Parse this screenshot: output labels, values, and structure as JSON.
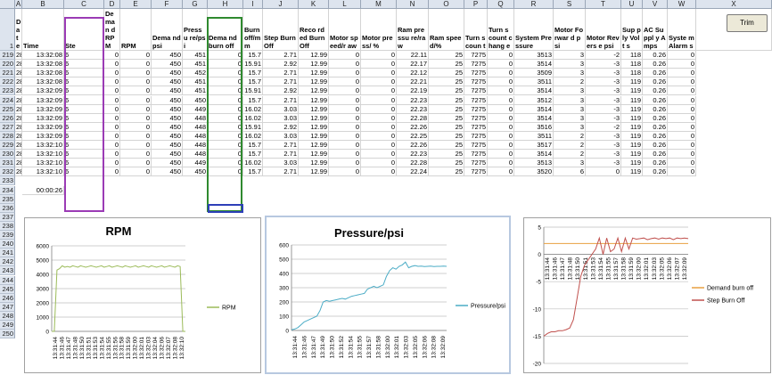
{
  "columns": [
    "A",
    "B",
    "C",
    "D",
    "E",
    "F",
    "G",
    "H",
    "I",
    "J",
    "K",
    "L",
    "M",
    "N",
    "O",
    "P",
    "Q",
    "R",
    "S",
    "T",
    "U",
    "V",
    "W",
    "X"
  ],
  "header_row": {
    "row_number": "1",
    "labels": [
      "Date",
      "Time",
      "Ste",
      "Deman d RPM",
      "RPM",
      "Dema nd psi",
      "Pressu re/psi",
      "Dema nd burn off",
      "Burn off/m m",
      "Step Burn Off",
      "Reco rded Burn Off",
      "Motor speed/r aw",
      "Motor press/ %",
      "Ram pressu re/raw",
      "Ram spee d/%",
      "Turn s coun t",
      "Turn s count chang e",
      "System Pressure",
      "Motor Forwar d psi",
      "Motor Revers e psi",
      "Sup ply Volt s",
      "AC Suppl y Amps",
      "Syste m Alarm s"
    ]
  },
  "rows": [
    {
      "n": "219",
      "c": [
        "28/03/2013",
        "13:32:08",
        "6",
        "0",
        "0",
        "450",
        "451",
        "0",
        "15.7",
        "2.71",
        "12.99",
        "0",
        "0",
        "22.11",
        "25",
        "7275",
        "0",
        "3513",
        "3",
        "-2",
        "118",
        "0.26",
        "0"
      ]
    },
    {
      "n": "220",
      "c": [
        "28/03/2013",
        "13:32:08",
        "6",
        "0",
        "0",
        "450",
        "451",
        "0",
        "15.91",
        "2.92",
        "12.99",
        "0",
        "0",
        "22.17",
        "25",
        "7275",
        "0",
        "3514",
        "3",
        "-3",
        "118",
        "0.26",
        "0"
      ]
    },
    {
      "n": "221",
      "c": [
        "28/03/2013",
        "13:32:08",
        "6",
        "0",
        "0",
        "450",
        "452",
        "0",
        "15.7",
        "2.71",
        "12.99",
        "0",
        "0",
        "22.12",
        "25",
        "7275",
        "0",
        "3509",
        "3",
        "-3",
        "118",
        "0.26",
        "0"
      ]
    },
    {
      "n": "222",
      "c": [
        "28/03/2013",
        "13:32:08",
        "6",
        "0",
        "0",
        "450",
        "451",
        "0",
        "15.7",
        "2.71",
        "12.99",
        "0",
        "0",
        "22.21",
        "25",
        "7275",
        "0",
        "3511",
        "2",
        "-3",
        "119",
        "0.26",
        "0"
      ]
    },
    {
      "n": "223",
      "c": [
        "28/03/2013",
        "13:32:09",
        "6",
        "0",
        "0",
        "450",
        "451",
        "0",
        "15.91",
        "2.92",
        "12.99",
        "0",
        "0",
        "22.19",
        "25",
        "7275",
        "0",
        "3514",
        "3",
        "-3",
        "119",
        "0.26",
        "0"
      ]
    },
    {
      "n": "224",
      "c": [
        "28/03/2013",
        "13:32:09",
        "6",
        "0",
        "0",
        "450",
        "450",
        "0",
        "15.7",
        "2.71",
        "12.99",
        "0",
        "0",
        "22.23",
        "25",
        "7275",
        "0",
        "3512",
        "3",
        "-3",
        "119",
        "0.26",
        "0"
      ]
    },
    {
      "n": "225",
      "c": [
        "28/03/2013",
        "13:32:09",
        "6",
        "0",
        "0",
        "450",
        "449",
        "0",
        "16.02",
        "3.03",
        "12.99",
        "0",
        "0",
        "22.23",
        "25",
        "7275",
        "0",
        "3514",
        "3",
        "-3",
        "119",
        "0.26",
        "0"
      ]
    },
    {
      "n": "226",
      "c": [
        "28/03/2013",
        "13:32:09",
        "6",
        "0",
        "0",
        "450",
        "448",
        "0",
        "16.02",
        "3.03",
        "12.99",
        "0",
        "0",
        "22.28",
        "25",
        "7275",
        "0",
        "3514",
        "3",
        "-3",
        "119",
        "0.26",
        "0"
      ]
    },
    {
      "n": "227",
      "c": [
        "28/03/2013",
        "13:32:09",
        "6",
        "0",
        "0",
        "450",
        "448",
        "0",
        "15.91",
        "2.92",
        "12.99",
        "0",
        "0",
        "22.26",
        "25",
        "7275",
        "0",
        "3516",
        "3",
        "-2",
        "119",
        "0.26",
        "0"
      ]
    },
    {
      "n": "228",
      "c": [
        "28/03/2013",
        "13:32:09",
        "6",
        "0",
        "0",
        "450",
        "448",
        "0",
        "16.02",
        "3.03",
        "12.99",
        "0",
        "0",
        "22.25",
        "25",
        "7275",
        "0",
        "3511",
        "2",
        "-3",
        "119",
        "0.26",
        "0"
      ]
    },
    {
      "n": "229",
      "c": [
        "28/03/2013",
        "13:32:10",
        "6",
        "0",
        "0",
        "450",
        "448",
        "0",
        "15.7",
        "2.71",
        "12.99",
        "0",
        "0",
        "22.26",
        "25",
        "7275",
        "0",
        "3517",
        "2",
        "-3",
        "119",
        "0.26",
        "0"
      ]
    },
    {
      "n": "230",
      "c": [
        "28/03/2013",
        "13:32:10",
        "6",
        "0",
        "0",
        "450",
        "448",
        "0",
        "15.7",
        "2.71",
        "12.99",
        "0",
        "0",
        "22.23",
        "25",
        "7275",
        "0",
        "3514",
        "2",
        "-3",
        "119",
        "0.26",
        "0"
      ]
    },
    {
      "n": "231",
      "c": [
        "28/03/2013",
        "13:32:10",
        "6",
        "0",
        "0",
        "450",
        "449",
        "0",
        "16.02",
        "3.03",
        "12.99",
        "0",
        "0",
        "22.28",
        "25",
        "7275",
        "0",
        "3513",
        "3",
        "-3",
        "119",
        "0.26",
        "0"
      ]
    },
    {
      "n": "232",
      "c": [
        "28/03/2013",
        "13:32:10",
        "6",
        "0",
        "0",
        "450",
        "450",
        "0",
        "15.7",
        "2.71",
        "12.99",
        "0",
        "0",
        "22.24",
        "25",
        "7275",
        "0",
        "3520",
        "6",
        "0",
        "119",
        "0.26",
        "0"
      ]
    }
  ],
  "extra_rows": [
    "233",
    "234",
    "235",
    "236",
    "237",
    "238",
    "239",
    "240",
    "241",
    "242",
    "243",
    "244",
    "245",
    "246",
    "247",
    "248",
    "249",
    "250"
  ],
  "duration_cell": {
    "row": "234",
    "value": "00:00:26"
  },
  "trim_button": "Trim",
  "time_ticks": [
    "13:31:44",
    "13:31:46",
    "13:31:47",
    "13:31:48",
    "13:31:50",
    "13:31:51",
    "13:31:53",
    "13:31:54",
    "13:31:55",
    "13:31:56",
    "13:31:58",
    "13:31:59",
    "13:32:00",
    "13:32:01",
    "13:32:03",
    "13:32:04",
    "13:32:06",
    "13:32:07",
    "13:32:08",
    "13:32:10"
  ],
  "chart_data": [
    {
      "type": "line",
      "title": "RPM",
      "ylim": [
        0,
        6000
      ],
      "yticks": [
        "0",
        "1000",
        "2000",
        "3000",
        "4000",
        "5000",
        "6000"
      ],
      "xticks": [
        "13:31:44",
        "13:31:46",
        "13:31:47",
        "13:31:48",
        "13:31:50",
        "13:31:51",
        "13:31:53",
        "13:31:54",
        "13:31:55",
        "13:31:56",
        "13:31:58",
        "13:31:59",
        "13:32:00",
        "13:32:01",
        "13:32:03",
        "13:32:04",
        "13:32:06",
        "13:32:07",
        "13:32:08",
        "13:32:10"
      ],
      "series": [
        {
          "name": "RPM",
          "color": "#9bbb59",
          "values": [
            0,
            0,
            4300,
            4400,
            4600,
            4500,
            4550,
            4500,
            4600,
            4550,
            4500,
            4600,
            4550,
            4500,
            4550,
            4600,
            4550,
            4500,
            4550,
            4600,
            4500,
            4550,
            4600,
            4500,
            4550,
            4600,
            4550,
            4500,
            4600,
            4550,
            4500,
            4550,
            4600,
            4500,
            4550,
            4600,
            4550,
            4500,
            4600,
            4550,
            4500,
            4550,
            4600,
            4500,
            4550,
            4600,
            4550,
            4500,
            4600,
            4550,
            0,
            0
          ]
        }
      ],
      "legend": "right"
    },
    {
      "type": "line",
      "title": "Pressure/psi",
      "ylim": [
        0,
        600
      ],
      "yticks": [
        "0",
        "100",
        "200",
        "300",
        "400",
        "500",
        "600"
      ],
      "xticks": [
        "13:31:44",
        "13:31:46",
        "13:31:47",
        "13:31:49",
        "13:31:50",
        "13:31:52",
        "13:31:54",
        "13:31:55",
        "13:31:57",
        "13:31:58",
        "13:32:00",
        "13:32:01",
        "13:32:03",
        "13:32:05",
        "13:32:06",
        "13:32:08",
        "13:32:09"
      ],
      "series": [
        {
          "name": "Pressure/psi",
          "color": "#4bacc6",
          "values": [
            5,
            10,
            20,
            40,
            60,
            70,
            80,
            90,
            100,
            140,
            200,
            210,
            205,
            210,
            215,
            220,
            225,
            220,
            230,
            240,
            245,
            250,
            255,
            260,
            290,
            300,
            310,
            300,
            310,
            320,
            380,
            420,
            440,
            430,
            450,
            460,
            480,
            440,
            450,
            455,
            450,
            452,
            448,
            450,
            451,
            449,
            450,
            450,
            451,
            450
          ]
        }
      ],
      "legend": "right"
    },
    {
      "type": "line",
      "title": "",
      "ylim": [
        -20,
        5
      ],
      "yticks": [
        "5",
        "0",
        "-5",
        "-10",
        "-15",
        "-20"
      ],
      "xticks": [
        "13:31:44",
        "13:31:46",
        "13:31:47",
        "13:31:48",
        "13:31:50",
        "13:31:51",
        "13:31:53",
        "13:31:54",
        "13:31:55",
        "13:31:57",
        "13:31:58",
        "13:31:59",
        "13:32:00",
        "13:32:01",
        "13:32:03",
        "13:32:05",
        "13:32:06",
        "13:32:07",
        "13:32:09"
      ],
      "series": [
        {
          "name": "Demand burn off",
          "color": "#e8a040",
          "values": [
            2,
            2,
            2,
            2,
            2,
            2,
            2,
            2,
            2,
            2,
            2,
            2,
            2,
            2,
            2,
            2,
            2,
            2,
            2,
            2,
            2,
            2,
            2,
            2,
            2,
            2,
            2,
            2,
            2,
            2,
            2,
            2,
            2,
            2,
            2,
            2,
            2,
            2,
            2,
            2
          ]
        },
        {
          "name": "Step Burn Off",
          "color": "#c0504d",
          "values": [
            -15,
            -14.5,
            -14.2,
            -14.2,
            -14,
            -14,
            -13.8,
            -13.5,
            -12,
            -8,
            -4,
            -2,
            -1,
            0,
            1,
            3,
            0,
            3,
            0.5,
            1,
            3,
            0.5,
            3,
            1,
            3,
            2.8,
            2.9,
            3,
            2.7,
            2.9,
            3,
            2.8,
            3,
            2.9,
            3,
            2.7,
            3,
            2.9,
            3,
            2.9
          ]
        }
      ],
      "legend": "right"
    }
  ]
}
